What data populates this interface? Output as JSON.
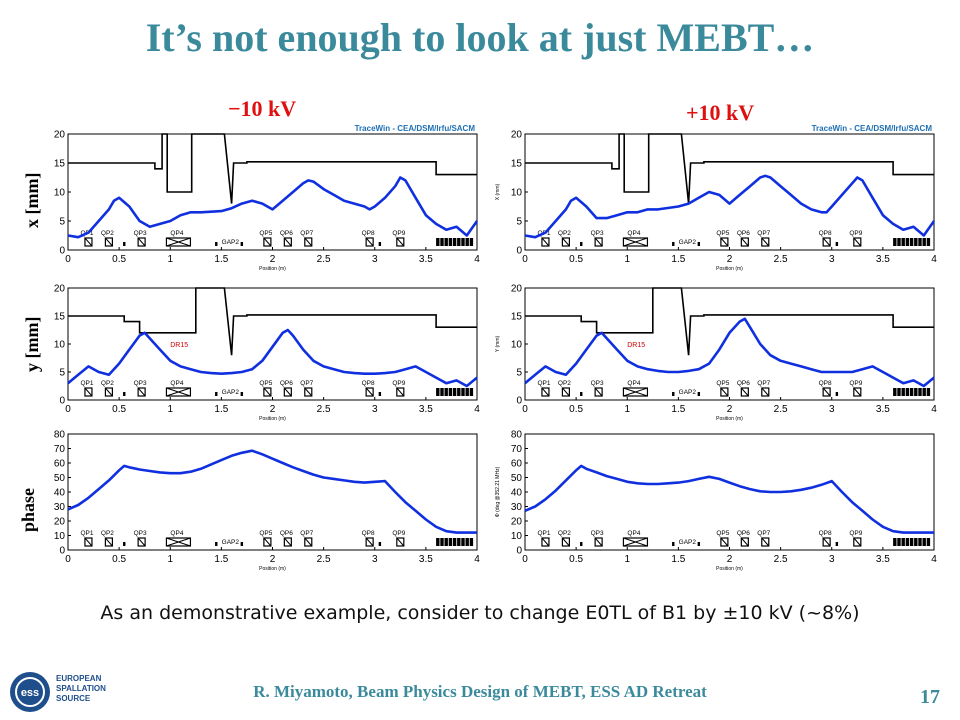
{
  "title": "It’s not enough to look at just MEBT…",
  "columns": {
    "left": "−10 kV",
    "right": "+10 kV"
  },
  "row_labels": {
    "x": "x [mm]",
    "y": "y [mm]",
    "phase": "phase"
  },
  "caption": "As an demonstrative example, consider to change E0TL of B1 by ±10 kV (~8%)",
  "footer": "R. Miyamoto, Beam Physics Design of MEBT, ESS AD Retreat",
  "page_number": "17",
  "logo": {
    "lines": [
      "EUROPEAN",
      "SPALLATION",
      "SOURCE"
    ],
    "mark": "ess"
  },
  "colors": {
    "title": "#3a8a9c",
    "trace": "#1030e0",
    "aperture": "#000000",
    "column_label": "#e01010",
    "watermark": "#1e6fb4"
  },
  "chart_data": [
    {
      "type": "line",
      "column": "left",
      "row": "x",
      "watermark": "TraceWin - CEA/DSM/Irfu/SACM",
      "xlabel": "Position (m)",
      "ylabel": "",
      "xlim": [
        0,
        4
      ],
      "ylim": [
        0,
        20
      ],
      "xticks": [
        "0",
        "0.5",
        "1",
        "1.5",
        "2",
        "2.5",
        "3",
        "3.5",
        "4"
      ],
      "yticks": [
        "0",
        "5",
        "10",
        "15",
        "20"
      ],
      "elements": [
        "QP1",
        "QP2",
        "QP3",
        "QP4",
        "GAP2",
        "QP5",
        "QP6",
        "QP7",
        "QP8",
        "QP9"
      ],
      "aperture": [
        [
          0,
          15
        ],
        [
          0.85,
          15
        ],
        [
          0.85,
          14
        ],
        [
          0.92,
          14
        ],
        [
          0.92,
          20
        ],
        [
          0.97,
          20
        ],
        [
          0.97,
          10
        ],
        [
          1.21,
          10
        ],
        [
          1.21,
          20
        ],
        [
          1.53,
          20
        ],
        [
          1.6,
          8
        ],
        [
          1.62,
          15
        ],
        [
          1.75,
          15
        ],
        [
          1.75,
          15.2
        ],
        [
          3.6,
          15.2
        ],
        [
          3.6,
          13
        ],
        [
          4,
          13
        ]
      ],
      "series": [
        {
          "x": [
            0,
            0.1,
            0.2,
            0.3,
            0.4,
            0.45,
            0.5,
            0.6,
            0.7,
            0.8,
            0.9,
            1,
            1.1,
            1.2,
            1.3,
            1.5,
            1.6,
            1.7,
            1.8,
            1.9,
            2,
            2.1,
            2.2,
            2.3,
            2.35,
            2.4,
            2.5,
            2.6,
            2.7,
            2.8,
            2.9,
            2.95,
            3,
            3.1,
            3.2,
            3.25,
            3.3,
            3.4,
            3.5,
            3.6,
            3.7,
            3.8,
            3.9,
            4
          ],
          "y": [
            2.5,
            2.2,
            3,
            5,
            7,
            8.5,
            9,
            7.5,
            5,
            4,
            4.5,
            5,
            6,
            6.5,
            6.5,
            6.7,
            7.2,
            8,
            8.5,
            8,
            7,
            8.5,
            10,
            11.5,
            12,
            11.8,
            10.5,
            9.5,
            8.5,
            8,
            7.5,
            7,
            7.5,
            9,
            11,
            12.5,
            12,
            9,
            6,
            4.5,
            3.5,
            4,
            2.5,
            5
          ]
        }
      ]
    },
    {
      "type": "line",
      "column": "right",
      "row": "x",
      "watermark": "TraceWin - CEA/DSM/Irfu/SACM",
      "xlabel": "Position (m)",
      "ylabel": "X (mm)",
      "xlim": [
        0,
        4
      ],
      "ylim": [
        0,
        20
      ],
      "xticks": [
        "0",
        "0.5",
        "1",
        "1.5",
        "2",
        "2.5",
        "3",
        "3.5",
        "4"
      ],
      "yticks": [
        "0",
        "5",
        "10",
        "15",
        "20"
      ],
      "elements": [
        "QP1",
        "QP2",
        "QP3",
        "QP4",
        "GAP2",
        "QP5",
        "QP6",
        "QP7",
        "QP8",
        "QP9"
      ],
      "aperture": [
        [
          0,
          15
        ],
        [
          0.85,
          15
        ],
        [
          0.85,
          14
        ],
        [
          0.92,
          14
        ],
        [
          0.92,
          20
        ],
        [
          0.97,
          20
        ],
        [
          0.97,
          10
        ],
        [
          1.21,
          10
        ],
        [
          1.21,
          20
        ],
        [
          1.53,
          20
        ],
        [
          1.6,
          8
        ],
        [
          1.62,
          15
        ],
        [
          1.75,
          15
        ],
        [
          1.75,
          15.2
        ],
        [
          3.6,
          15.2
        ],
        [
          3.6,
          13
        ],
        [
          4,
          13
        ]
      ],
      "series": [
        {
          "x": [
            0,
            0.1,
            0.2,
            0.3,
            0.4,
            0.45,
            0.5,
            0.6,
            0.7,
            0.8,
            0.9,
            1,
            1.1,
            1.2,
            1.3,
            1.5,
            1.6,
            1.7,
            1.8,
            1.9,
            2,
            2.1,
            2.2,
            2.3,
            2.35,
            2.4,
            2.5,
            2.6,
            2.7,
            2.8,
            2.9,
            2.95,
            3,
            3.1,
            3.2,
            3.25,
            3.3,
            3.4,
            3.5,
            3.6,
            3.7,
            3.8,
            3.9,
            4
          ],
          "y": [
            2.5,
            2.2,
            3,
            5,
            7,
            8.5,
            9,
            7.5,
            5.5,
            5.5,
            6,
            6.5,
            6.5,
            7,
            7,
            7.5,
            8,
            9,
            10,
            9.5,
            8,
            9.5,
            11,
            12.5,
            12.8,
            12.5,
            11,
            9.5,
            8,
            7,
            6.5,
            6.5,
            7.5,
            9.5,
            11.5,
            12.5,
            12,
            9,
            6,
            4.5,
            3.5,
            4,
            2.5,
            5
          ]
        }
      ]
    },
    {
      "type": "line",
      "column": "left",
      "row": "y",
      "annotation": "DR15",
      "xlabel": "Position (m)",
      "ylabel": "",
      "xlim": [
        0,
        4
      ],
      "ylim": [
        0,
        20
      ],
      "xticks": [
        "0",
        "0.5",
        "1",
        "1.5",
        "2",
        "2.5",
        "3",
        "3.5",
        "4"
      ],
      "yticks": [
        "0",
        "5",
        "10",
        "15",
        "20"
      ],
      "elements": [
        "QP1",
        "QP2",
        "QP3",
        "QP4",
        "GAP2",
        "QP5",
        "QP6",
        "QP7",
        "QP8",
        "QP9"
      ],
      "aperture": [
        [
          0,
          15
        ],
        [
          0.55,
          15
        ],
        [
          0.55,
          14
        ],
        [
          0.7,
          14
        ],
        [
          0.7,
          12
        ],
        [
          1.25,
          12
        ],
        [
          1.25,
          20
        ],
        [
          1.53,
          20
        ],
        [
          1.6,
          8
        ],
        [
          1.62,
          15
        ],
        [
          1.75,
          15
        ],
        [
          1.75,
          15.2
        ],
        [
          3.6,
          15.2
        ],
        [
          3.6,
          13
        ],
        [
          4,
          13
        ]
      ],
      "series": [
        {
          "x": [
            0,
            0.1,
            0.2,
            0.3,
            0.4,
            0.5,
            0.6,
            0.7,
            0.75,
            0.8,
            0.9,
            1,
            1.1,
            1.2,
            1.3,
            1.4,
            1.5,
            1.6,
            1.7,
            1.8,
            1.9,
            2,
            2.1,
            2.15,
            2.2,
            2.3,
            2.4,
            2.5,
            2.6,
            2.7,
            2.8,
            2.9,
            3,
            3.1,
            3.2,
            3.3,
            3.4,
            3.5,
            3.6,
            3.7,
            3.8,
            3.9,
            4
          ],
          "y": [
            3,
            4.5,
            6,
            5,
            4.5,
            6.5,
            9,
            11.5,
            12,
            11,
            9,
            7,
            6,
            5.5,
            5,
            4.8,
            4.7,
            4.8,
            5,
            5.5,
            7,
            9.5,
            12,
            12.5,
            11.5,
            9,
            7,
            6,
            5.5,
            5,
            4.8,
            4.7,
            4.7,
            4.8,
            5,
            5.5,
            6,
            5,
            4,
            3,
            3.5,
            2.5,
            4
          ]
        }
      ]
    },
    {
      "type": "line",
      "column": "right",
      "row": "y",
      "annotation": "DR15",
      "xlabel": "Position (m)",
      "ylabel": "Y (mm)",
      "xlim": [
        0,
        4
      ],
      "ylim": [
        0,
        20
      ],
      "xticks": [
        "0",
        "0.5",
        "1",
        "1.5",
        "2",
        "2.5",
        "3",
        "3.5",
        "4"
      ],
      "yticks": [
        "0",
        "5",
        "10",
        "15",
        "20"
      ],
      "elements": [
        "QP1",
        "QP2",
        "QP3",
        "QP4",
        "GAP2",
        "QP5",
        "QP6",
        "QP7",
        "QP8",
        "QP9"
      ],
      "aperture": [
        [
          0,
          15
        ],
        [
          0.55,
          15
        ],
        [
          0.55,
          14
        ],
        [
          0.7,
          14
        ],
        [
          0.7,
          12
        ],
        [
          1.25,
          12
        ],
        [
          1.25,
          20
        ],
        [
          1.53,
          20
        ],
        [
          1.6,
          8
        ],
        [
          1.62,
          15
        ],
        [
          1.75,
          15
        ],
        [
          1.75,
          15.2
        ],
        [
          3.6,
          15.2
        ],
        [
          3.6,
          13
        ],
        [
          4,
          13
        ]
      ],
      "series": [
        {
          "x": [
            0,
            0.1,
            0.2,
            0.3,
            0.4,
            0.5,
            0.6,
            0.7,
            0.75,
            0.8,
            0.9,
            1,
            1.1,
            1.2,
            1.3,
            1.4,
            1.5,
            1.6,
            1.7,
            1.8,
            1.9,
            2,
            2.1,
            2.15,
            2.2,
            2.3,
            2.4,
            2.5,
            2.6,
            2.7,
            2.8,
            2.9,
            3,
            3.1,
            3.2,
            3.3,
            3.4,
            3.5,
            3.6,
            3.7,
            3.8,
            3.9,
            4
          ],
          "y": [
            3,
            4.5,
            6,
            5,
            4.5,
            6.5,
            9,
            11.5,
            12,
            11,
            9,
            7,
            6,
            5.5,
            5.2,
            5,
            5,
            5.2,
            5.5,
            6.5,
            9,
            12,
            14,
            14.5,
            13,
            10,
            8,
            7,
            6.5,
            6,
            5.5,
            5,
            5,
            5,
            5,
            5.5,
            6,
            5,
            4,
            3,
            3.5,
            2.5,
            4
          ]
        }
      ]
    },
    {
      "type": "line",
      "column": "left",
      "row": "phase",
      "xlabel": "Position (m)",
      "ylabel": "",
      "xlim": [
        0,
        4
      ],
      "ylim": [
        0,
        80
      ],
      "xticks": [
        "0",
        "0.5",
        "1",
        "1.5",
        "2",
        "2.5",
        "3",
        "3.5",
        "4"
      ],
      "yticks": [
        "0",
        "10",
        "20",
        "30",
        "40",
        "50",
        "60",
        "70",
        "80"
      ],
      "elements": [
        "QP1",
        "QP2",
        "QP3",
        "QP4",
        "GAP2",
        "QP5",
        "QP6",
        "QP7",
        "QP8",
        "QP9"
      ],
      "series": [
        {
          "x": [
            0,
            0.1,
            0.2,
            0.3,
            0.4,
            0.5,
            0.55,
            0.6,
            0.7,
            0.8,
            0.9,
            1,
            1.1,
            1.2,
            1.3,
            1.4,
            1.5,
            1.6,
            1.7,
            1.8,
            1.9,
            2,
            2.1,
            2.2,
            2.3,
            2.4,
            2.5,
            2.6,
            2.7,
            2.8,
            2.9,
            3,
            3.1,
            3.2,
            3.3,
            3.4,
            3.5,
            3.6,
            3.7,
            3.8,
            3.9,
            4
          ],
          "y": [
            28,
            31,
            36,
            42,
            48,
            55,
            58,
            57,
            55.5,
            54.5,
            53.5,
            53,
            53,
            54,
            56,
            59,
            62,
            65,
            67,
            68.5,
            66,
            63,
            60,
            57,
            54.5,
            52,
            50,
            49,
            48,
            47,
            46.5,
            47,
            47.5,
            40,
            33,
            27,
            21,
            16,
            13,
            12,
            12,
            12
          ]
        }
      ]
    },
    {
      "type": "line",
      "column": "right",
      "row": "phase",
      "xlabel": "Position (m)",
      "ylabel": "Φ (deg @352.21 MHz)",
      "xlim": [
        0,
        4
      ],
      "ylim": [
        0,
        80
      ],
      "xticks": [
        "0",
        "0.5",
        "1",
        "1.5",
        "2",
        "2.5",
        "3",
        "3.5",
        "4"
      ],
      "yticks": [
        "0",
        "10",
        "20",
        "30",
        "40",
        "50",
        "60",
        "70",
        "80"
      ],
      "elements": [
        "QP1",
        "QP2",
        "QP3",
        "QP4",
        "GAP2",
        "QP5",
        "QP6",
        "QP7",
        "QP8",
        "QP9"
      ],
      "series": [
        {
          "x": [
            0,
            0.1,
            0.2,
            0.3,
            0.4,
            0.5,
            0.55,
            0.6,
            0.7,
            0.8,
            0.9,
            1,
            1.1,
            1.2,
            1.3,
            1.4,
            1.5,
            1.6,
            1.7,
            1.8,
            1.9,
            2,
            2.1,
            2.2,
            2.3,
            2.4,
            2.5,
            2.6,
            2.7,
            2.8,
            2.9,
            3,
            3.1,
            3.2,
            3.3,
            3.4,
            3.5,
            3.6,
            3.7,
            3.8,
            3.9,
            4
          ],
          "y": [
            27,
            30,
            35,
            41,
            48,
            55,
            58,
            56,
            53.5,
            51,
            49,
            47,
            46,
            45.5,
            45.5,
            46,
            46.5,
            47.5,
            49,
            50.5,
            49,
            46.5,
            44,
            42,
            40.5,
            40,
            40,
            40.5,
            41.5,
            43,
            45,
            47.5,
            40,
            33,
            27,
            21,
            16,
            13,
            12,
            12,
            12,
            12
          ]
        }
      ]
    }
  ]
}
